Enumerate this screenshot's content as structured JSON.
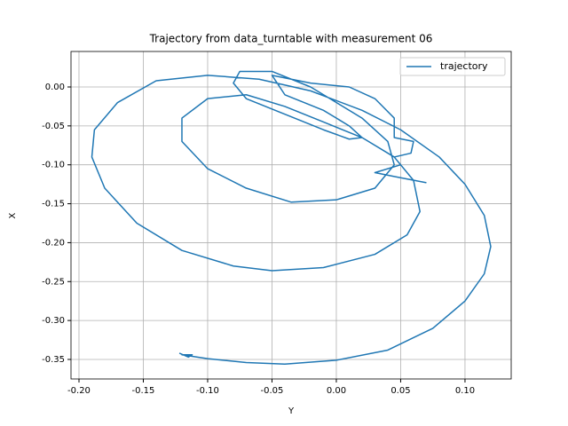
{
  "chart_data": {
    "type": "line",
    "title": "Trajectory from data_turntable with measurement 06",
    "x_label": "Y",
    "y_label": "X",
    "series": [
      {
        "name": "trajectory",
        "color": "#1f77b4",
        "x": [
          -0.122,
          -0.115,
          -0.112,
          -0.12,
          -0.1,
          -0.07,
          -0.04,
          0.0,
          0.04,
          0.075,
          0.1,
          0.115,
          0.12,
          0.115,
          0.1,
          0.08,
          0.05,
          0.02,
          -0.02,
          -0.06,
          -0.1,
          -0.14,
          -0.17,
          -0.188,
          -0.19,
          -0.18,
          -0.155,
          -0.12,
          -0.08,
          -0.05,
          -0.01,
          0.03,
          0.055,
          0.065,
          0.06,
          0.045,
          0.02,
          -0.01,
          -0.04,
          -0.07,
          -0.1,
          -0.12,
          -0.12,
          -0.1,
          -0.07,
          -0.035,
          0.0,
          0.03,
          0.045,
          0.04,
          0.02,
          0.0,
          -0.02,
          -0.05,
          -0.075,
          -0.08,
          -0.07,
          -0.04,
          -0.01,
          0.01,
          0.02,
          0.01,
          -0.01,
          -0.04,
          -0.05,
          -0.035,
          -0.02,
          0.01,
          0.03,
          0.045,
          0.045,
          0.06,
          0.058,
          0.045,
          0.05,
          0.03,
          0.045,
          0.07
        ],
        "values": [
          -0.342,
          -0.347,
          -0.344,
          -0.344,
          -0.349,
          -0.354,
          -0.356,
          -0.351,
          -0.338,
          -0.31,
          -0.275,
          -0.24,
          -0.205,
          -0.165,
          -0.125,
          -0.09,
          -0.055,
          -0.03,
          -0.005,
          0.01,
          0.015,
          0.008,
          -0.02,
          -0.055,
          -0.09,
          -0.13,
          -0.175,
          -0.21,
          -0.23,
          -0.236,
          -0.232,
          -0.215,
          -0.19,
          -0.16,
          -0.12,
          -0.09,
          -0.065,
          -0.045,
          -0.025,
          -0.01,
          -0.015,
          -0.04,
          -0.07,
          -0.105,
          -0.13,
          -0.148,
          -0.145,
          -0.13,
          -0.1,
          -0.07,
          -0.04,
          -0.02,
          0.0,
          0.02,
          0.02,
          0.005,
          -0.015,
          -0.035,
          -0.055,
          -0.067,
          -0.065,
          -0.05,
          -0.03,
          -0.01,
          0.015,
          0.01,
          0.005,
          0.0,
          -0.015,
          -0.04,
          -0.065,
          -0.07,
          -0.085,
          -0.09,
          -0.1,
          -0.11,
          -0.115,
          -0.123
        ]
      }
    ],
    "xlim": [
      -0.2062,
      0.1359
    ],
    "ylim": [
      -0.3751,
      0.0456
    ],
    "xticks": [
      {
        "value": -0.2,
        "label": "-0.20"
      },
      {
        "value": -0.15,
        "label": "-0.15"
      },
      {
        "value": -0.1,
        "label": "-0.10"
      },
      {
        "value": -0.05,
        "label": "-0.05"
      },
      {
        "value": 0,
        "label": "0.00"
      },
      {
        "value": 0.05,
        "label": "0.05"
      },
      {
        "value": 0.1,
        "label": "0.10"
      }
    ],
    "yticks": [
      {
        "value": 0,
        "label": "0.00"
      },
      {
        "value": -0.05,
        "label": "-0.05"
      },
      {
        "value": -0.1,
        "label": "-0.10"
      },
      {
        "value": -0.15,
        "label": "-0.15"
      },
      {
        "value": -0.2,
        "label": "-0.20"
      },
      {
        "value": -0.25,
        "label": "-0.25"
      },
      {
        "value": -0.3,
        "label": "-0.30"
      },
      {
        "value": -0.35,
        "label": "-0.35"
      }
    ],
    "grid": true,
    "legend": "upper right"
  }
}
